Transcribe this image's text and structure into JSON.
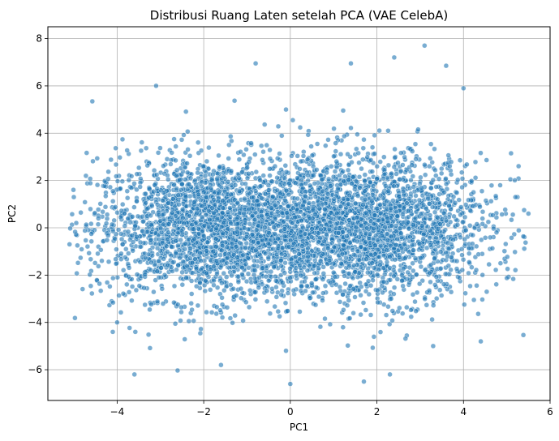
{
  "chart_data": {
    "type": "scatter",
    "title": "Distribusi Ruang Laten setelah PCA (VAE CelebA)",
    "xlabel": "PC1",
    "ylabel": "PC2",
    "xlim": [
      -5.6,
      6.0
    ],
    "ylim": [
      -7.3,
      8.5
    ],
    "xticks": [
      -4,
      -2,
      0,
      2,
      4,
      6
    ],
    "yticks": [
      -6,
      -4,
      -2,
      0,
      2,
      4,
      6,
      8
    ],
    "xtick_labels": [
      "−4",
      "−2",
      "0",
      "2",
      "4",
      "6"
    ],
    "ytick_labels": [
      "−6",
      "−4",
      "−2",
      "0",
      "2",
      "4",
      "6",
      "8"
    ],
    "grid": true,
    "point_color": "#1f77b4",
    "point_edge_color": "#ffffff",
    "point_alpha": 0.6,
    "distribution": {
      "clusters": [
        {
          "center": [
            -1.8,
            0.0
          ],
          "sx": 1.4,
          "sy": 1.5,
          "n": 2400
        },
        {
          "center": [
            1.8,
            0.0
          ],
          "sx": 1.4,
          "sy": 1.5,
          "n": 2400
        }
      ],
      "x_range": [
        -5.1,
        5.5
      ],
      "y_range": [
        -6.7,
        7.7
      ]
    },
    "notable_points": [
      {
        "x": 3.1,
        "y": 7.7
      },
      {
        "x": 2.4,
        "y": 7.2
      },
      {
        "x": -0.8,
        "y": 6.95
      },
      {
        "x": 1.4,
        "y": 6.95
      },
      {
        "x": 3.6,
        "y": 6.85
      },
      {
        "x": -3.1,
        "y": 6.0
      },
      {
        "x": 0.0,
        "y": -6.6
      },
      {
        "x": 1.7,
        "y": -6.5
      },
      {
        "x": -3.6,
        "y": -6.2
      },
      {
        "x": 2.3,
        "y": -6.2
      },
      {
        "x": -1.6,
        "y": -5.8
      },
      {
        "x": 5.5,
        "y": 0.6
      },
      {
        "x": -5.1,
        "y": -0.7
      },
      {
        "x": -0.1,
        "y": -5.2
      },
      {
        "x": 3.3,
        "y": -5.0
      },
      {
        "x": -4.0,
        "y": -4.0
      },
      {
        "x": 4.4,
        "y": -4.8
      },
      {
        "x": -4.1,
        "y": -4.4
      },
      {
        "x": 4.0,
        "y": 5.9
      },
      {
        "x": -0.1,
        "y": 5.0
      },
      {
        "x": 5.2,
        "y": 1.3
      },
      {
        "x": -5.0,
        "y": 1.3
      }
    ]
  }
}
